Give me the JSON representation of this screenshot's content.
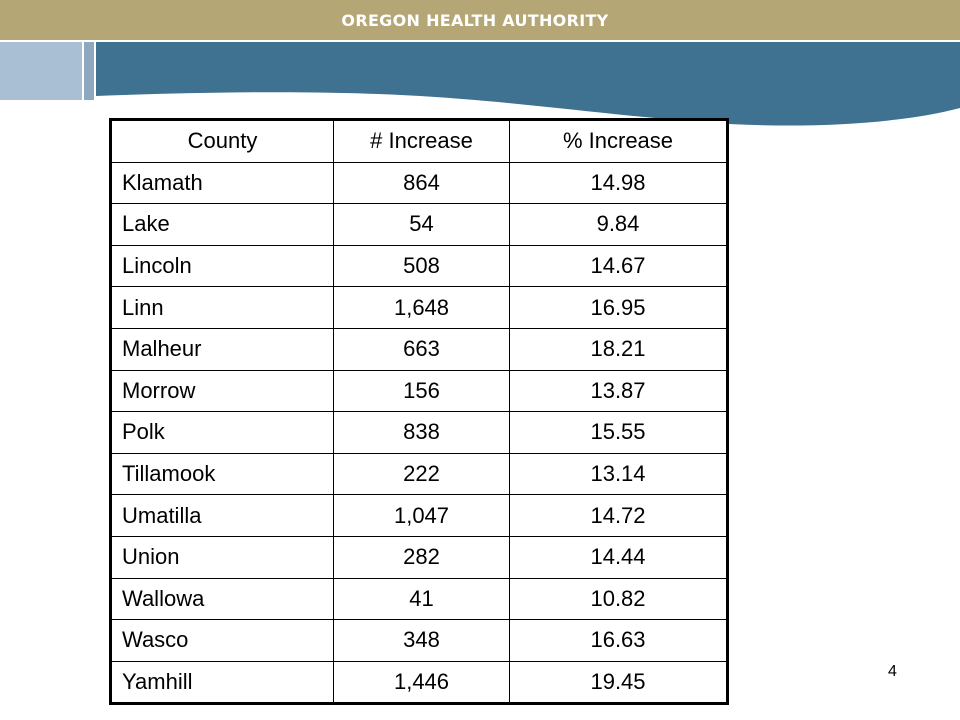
{
  "header": {
    "organization": "OREGON HEALTH AUTHORITY"
  },
  "colors": {
    "header_bar": "#b5a775",
    "wave_blue": "#3f7190",
    "accent_light_blue": "#a9bfd4"
  },
  "table": {
    "columns": [
      "County",
      "# Increase",
      "% Increase"
    ],
    "rows": [
      {
        "county": "Klamath",
        "increase": "864",
        "pct": "14.98"
      },
      {
        "county": "Lake",
        "increase": "54",
        "pct": "9.84"
      },
      {
        "county": "Lincoln",
        "increase": "508",
        "pct": "14.67"
      },
      {
        "county": "Linn",
        "increase": "1,648",
        "pct": "16.95"
      },
      {
        "county": "Malheur",
        "increase": "663",
        "pct": "18.21"
      },
      {
        "county": "Morrow",
        "increase": "156",
        "pct": "13.87"
      },
      {
        "county": "Polk",
        "increase": "838",
        "pct": "15.55"
      },
      {
        "county": "Tillamook",
        "increase": "222",
        "pct": "13.14"
      },
      {
        "county": "Umatilla",
        "increase": "1,047",
        "pct": "14.72"
      },
      {
        "county": "Union",
        "increase": "282",
        "pct": "14.44"
      },
      {
        "county": "Wallowa",
        "increase": "41",
        "pct": "10.82"
      },
      {
        "county": "Wasco",
        "increase": "348",
        "pct": "16.63"
      },
      {
        "county": "Yamhill",
        "increase": "1,446",
        "pct": "19.45"
      }
    ]
  },
  "footer": {
    "page_number": "4"
  }
}
